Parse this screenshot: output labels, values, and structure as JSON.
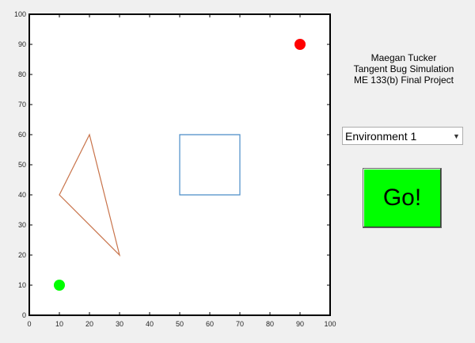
{
  "info": {
    "line1": "Maegan Tucker",
    "line2": "Tangent Bug Simulation",
    "line3": "ME 133(b) Final Project"
  },
  "environment_select": {
    "selected": "Environment 1",
    "arrow_icon": "chevron-down-icon"
  },
  "go_button": {
    "label": "Go!",
    "color": "#00ff00"
  },
  "colors": {
    "goal": "#ff0000",
    "start": "#00ff00",
    "square_obstacle": "#4a8cc7",
    "triangle_obstacle": "#c8734a"
  },
  "chart_data": {
    "type": "scatter",
    "title": "",
    "xlabel": "",
    "ylabel": "",
    "xlim": [
      0,
      100
    ],
    "ylim": [
      0,
      100
    ],
    "xticks": [
      0,
      10,
      20,
      30,
      40,
      50,
      60,
      70,
      80,
      90,
      100
    ],
    "yticks": [
      0,
      10,
      20,
      30,
      40,
      50,
      60,
      70,
      80,
      90,
      100
    ],
    "grid": false,
    "start_point": {
      "x": 10,
      "y": 10
    },
    "goal_point": {
      "x": 90,
      "y": 90
    },
    "obstacles": [
      {
        "shape": "square",
        "vertices": [
          [
            50,
            40
          ],
          [
            70,
            40
          ],
          [
            70,
            60
          ],
          [
            50,
            60
          ]
        ]
      },
      {
        "shape": "triangle",
        "vertices": [
          [
            10,
            40
          ],
          [
            20,
            60
          ],
          [
            30,
            20
          ]
        ]
      }
    ]
  }
}
